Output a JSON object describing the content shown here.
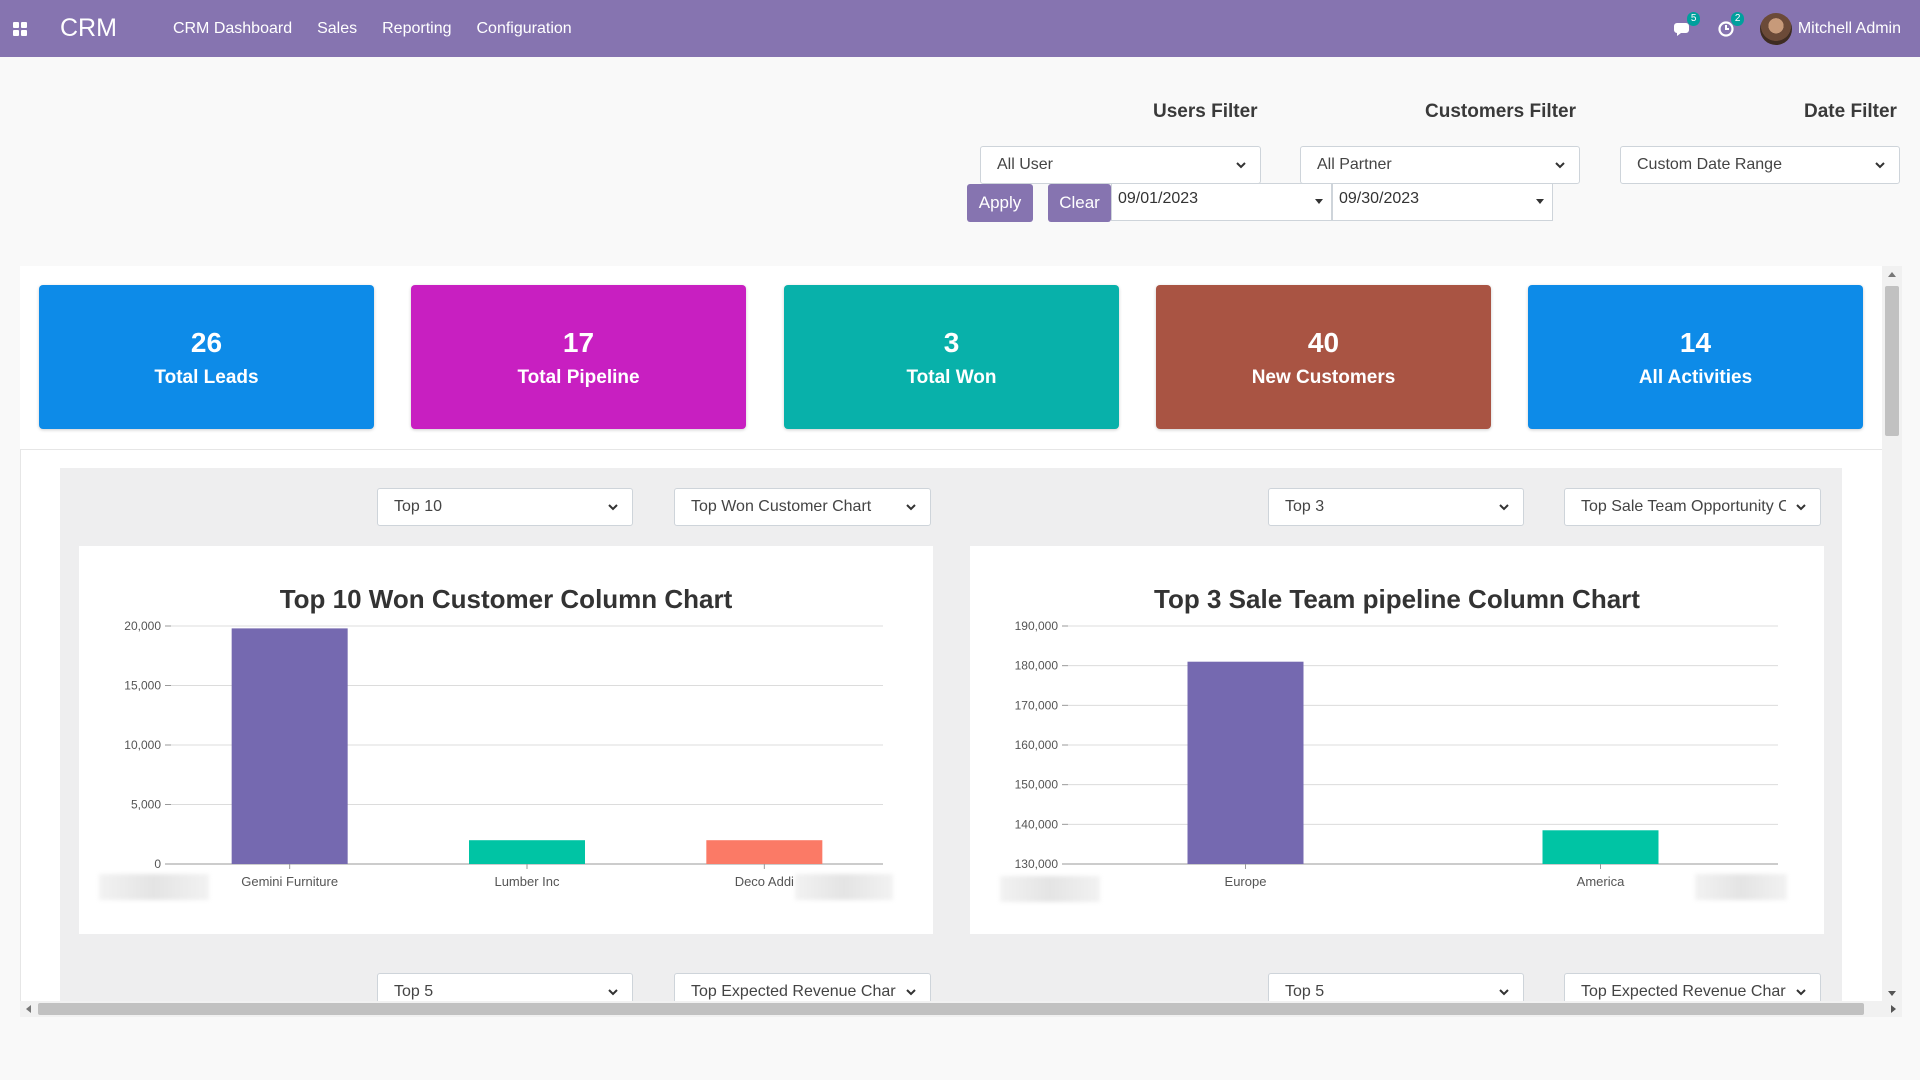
{
  "navbar": {
    "brand": "CRM",
    "menu": [
      "CRM Dashboard",
      "Sales",
      "Reporting",
      "Configuration"
    ],
    "messages_badge": "5",
    "activities_badge": "2",
    "user_name": "Mitchell Admin",
    "bg_color": "#8674b0"
  },
  "filters": {
    "users_label": "Users Filter",
    "customers_label": "Customers Filter",
    "date_label": "Date Filter",
    "users_value": "All User",
    "customers_value": "All Partner",
    "date_value": "Custom Date Range",
    "apply_label": "Apply",
    "clear_label": "Clear",
    "start_date": "09/01/2023",
    "end_date": "09/30/2023"
  },
  "cards": [
    {
      "value": "26",
      "label": "Total Leads",
      "color": "#0d8be8"
    },
    {
      "value": "17",
      "label": "Total Pipeline",
      "color": "#c81fc1"
    },
    {
      "value": "3",
      "label": "Total Won",
      "color": "#08b1aa"
    },
    {
      "value": "40",
      "label": "New Customers",
      "color": "#a95443"
    },
    {
      "value": "14",
      "label": "All Activities",
      "color": "#0d8be8"
    }
  ],
  "chart_controls": {
    "left_top_select": "Top 10",
    "left_type_select": "Top Won Customer Chart",
    "right_top_select": "Top 3",
    "right_type_select": "Top Sale Team Opportunity Chart",
    "bottom_left_top_select": "Top 5",
    "bottom_left_type_select": "Top Expected Revenue Chart",
    "bottom_right_top_select": "Top 5",
    "bottom_right_type_select": "Top Expected Revenue Chart"
  },
  "chart_data": [
    {
      "type": "bar",
      "title": "Top 10 Won Customer Column Chart",
      "categories": [
        "Gemini Furniture",
        "Lumber Inc",
        "Deco Addict"
      ],
      "category_labels": [
        "Gemini Furniture",
        "Lumber Inc",
        "Deco Addi"
      ],
      "values": [
        19800,
        2000,
        2000
      ],
      "colors": [
        "#7569b0",
        "#00c4a4",
        "#fb7a66"
      ],
      "ylim": [
        0,
        20000
      ],
      "yticks": [
        0,
        5000,
        10000,
        15000,
        20000
      ],
      "ytick_labels": [
        "0",
        "5,000",
        "10,000",
        "15,000",
        "20,000"
      ],
      "grid": true
    },
    {
      "type": "bar",
      "title": "Top 3 Sale Team pipeline Column Chart",
      "categories": [
        "Europe",
        "America"
      ],
      "values": [
        181000,
        138500
      ],
      "colors": [
        "#7569b0",
        "#00c4a4"
      ],
      "ylim": [
        130000,
        190000
      ],
      "yticks": [
        130000,
        140000,
        150000,
        160000,
        170000,
        180000,
        190000
      ],
      "ytick_labels": [
        "130,000",
        "140,000",
        "150,000",
        "160,000",
        "170,000",
        "180,000",
        "190,000"
      ],
      "grid": true
    }
  ]
}
